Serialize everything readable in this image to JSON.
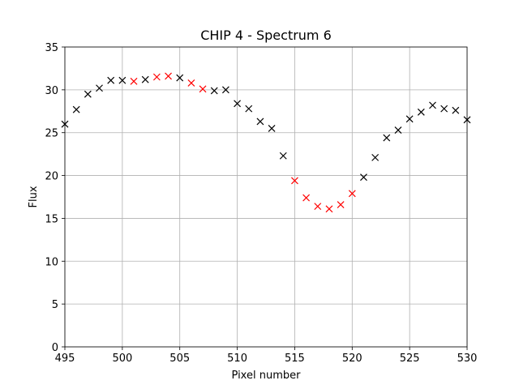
{
  "chart_data": {
    "type": "scatter",
    "title": "CHIP 4 - Spectrum 6",
    "xlabel": "Pixel number",
    "ylabel": "Flux",
    "xlim": [
      495,
      530
    ],
    "ylim": [
      0,
      35
    ],
    "x_ticks": [
      "495",
      "500",
      "505",
      "510",
      "515",
      "520",
      "525",
      "530"
    ],
    "y_ticks": [
      "0",
      "5",
      "10",
      "15",
      "20",
      "25",
      "30",
      "35"
    ],
    "grid": true,
    "marker": "x",
    "colors": {
      "normal": "#000000",
      "highlight": "#ff0000"
    },
    "series": [
      {
        "color": "#000000",
        "points": [
          [
            495,
            26.0
          ],
          [
            496,
            27.7
          ],
          [
            497,
            29.5
          ],
          [
            498,
            30.2
          ],
          [
            499,
            31.1
          ],
          [
            500,
            31.1
          ],
          [
            502,
            31.2
          ],
          [
            505,
            31.4
          ],
          [
            508,
            29.9
          ],
          [
            509,
            30.0
          ],
          [
            510,
            28.4
          ],
          [
            511,
            27.8
          ],
          [
            512,
            26.3
          ],
          [
            513,
            25.5
          ],
          [
            514,
            22.3
          ],
          [
            521,
            19.8
          ],
          [
            522,
            22.1
          ],
          [
            523,
            24.4
          ],
          [
            524,
            25.3
          ],
          [
            525,
            26.6
          ],
          [
            526,
            27.4
          ],
          [
            527,
            28.2
          ],
          [
            528,
            27.8
          ],
          [
            529,
            27.6
          ],
          [
            530,
            26.5
          ]
        ]
      },
      {
        "color": "#ff0000",
        "points": [
          [
            501,
            31.0
          ],
          [
            503,
            31.5
          ],
          [
            504,
            31.6
          ],
          [
            506,
            30.8
          ],
          [
            507,
            30.1
          ],
          [
            515,
            19.4
          ],
          [
            516,
            17.4
          ],
          [
            517,
            16.4
          ],
          [
            518,
            16.1
          ],
          [
            519,
            16.6
          ],
          [
            520,
            17.9
          ]
        ]
      }
    ]
  }
}
